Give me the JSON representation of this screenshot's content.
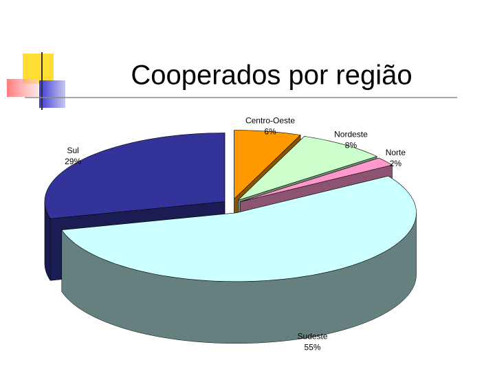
{
  "chart_data": {
    "type": "pie",
    "title": "Cooperados por região",
    "categories": [
      "Centro-Oeste",
      "Nordeste",
      "Norte",
      "Sudeste",
      "Sul"
    ],
    "values": [
      6,
      8,
      2,
      55,
      29
    ],
    "value_labels": [
      "6%",
      "8%",
      "2%",
      "55%",
      "29%"
    ],
    "colors": [
      "#ff9900",
      "#ccffcc",
      "#ff99cc",
      "#ccffff",
      "#333399"
    ]
  }
}
